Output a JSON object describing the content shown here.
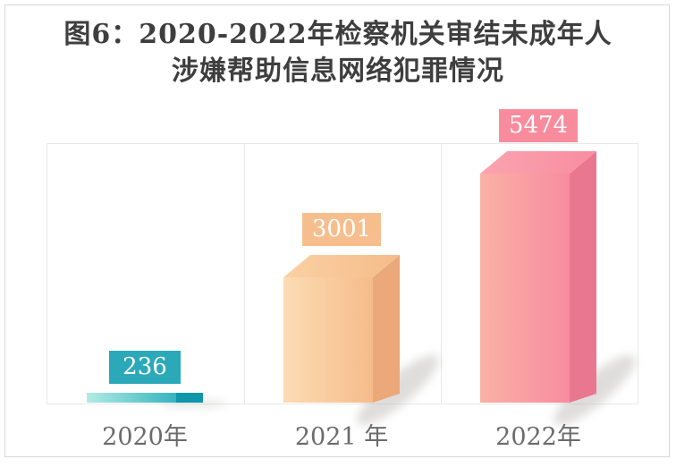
{
  "page": {
    "title_line1": "图6：2020-2022年检察机关审结未成年人",
    "title_line2": "涉嫌帮助信息网络犯罪情况"
  },
  "chart_data": {
    "type": "bar",
    "style": "3d-column-infographic",
    "title": "图6：2020-2022年检察机关审结未成年人涉嫌帮助信息网络犯罪情况",
    "categories": [
      "2020年",
      "2021 年",
      "2022年"
    ],
    "values": [
      236,
      3001,
      5474
    ],
    "xlabel": "",
    "ylabel": "",
    "ylim": [
      0,
      6200
    ],
    "grid": "vertical-category-separators",
    "legend": "none",
    "colors": {
      "title_text": "#3e3e3e",
      "axis_text": "#6b6b6b",
      "value_text": "#ffffff",
      "plot_border": "#e8e8e8",
      "outer_border": "#d8d8d8"
    },
    "bars": [
      {
        "category": "2020年",
        "value": 236,
        "label": "236",
        "label_box_color": "#2ba9b9",
        "bar_color_light": "#b2ece2",
        "bar_color": "#35b4bf",
        "bar_color_top": "#8fdfd8",
        "bar_color_dark": "#0e96a9"
      },
      {
        "category": "2021 年",
        "value": 3001,
        "label": "3001",
        "label_box_color": "#f6be8d",
        "bar_color_light": "#fcdcb4",
        "bar_color": "#f5bc8a",
        "bar_color_top": "#fad1a3",
        "bar_color_dark": "#eba878"
      },
      {
        "category": "2022年",
        "value": 5474,
        "label": "5474",
        "label_box_color": "#f88c9d",
        "bar_color_light": "#fbb1a5",
        "bar_color": "#f88ca0",
        "bar_color_top": "#fba4b0",
        "bar_color_dark": "#ea7790"
      }
    ]
  }
}
